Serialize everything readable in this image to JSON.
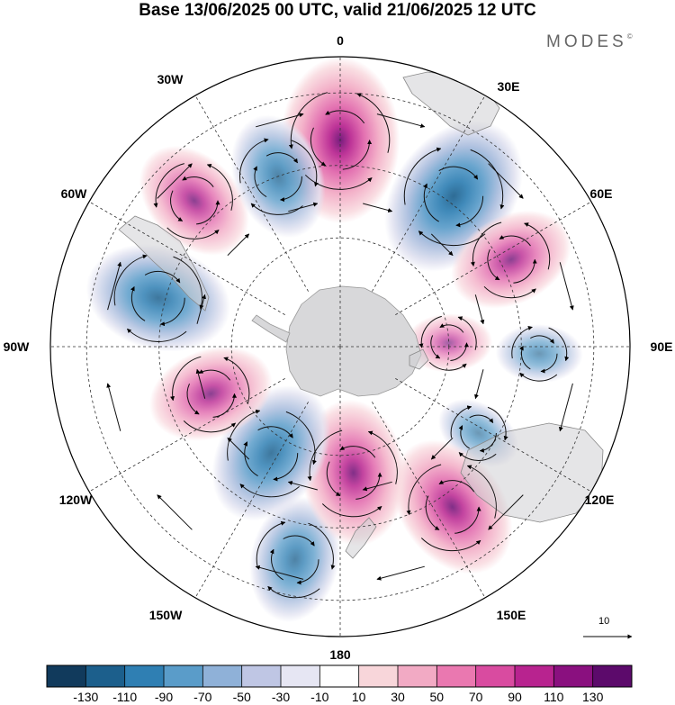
{
  "title": "Base 13/06/2025 00 UTC, valid 21/06/2025 12 UTC",
  "brand": "MODES",
  "brand_mark": "©",
  "projection": "south-polar-stereographic",
  "longitude_labels": [
    {
      "id": "lon-0",
      "text": "0",
      "lon": 0
    },
    {
      "id": "lon-30e",
      "text": "30E",
      "lon": 30
    },
    {
      "id": "lon-60e",
      "text": "60E",
      "lon": 60
    },
    {
      "id": "lon-90e",
      "text": "90E",
      "lon": 90
    },
    {
      "id": "lon-120e",
      "text": "120E",
      "lon": 120
    },
    {
      "id": "lon-150e",
      "text": "150E",
      "lon": 150
    },
    {
      "id": "lon-180",
      "text": "180",
      "lon": 180
    },
    {
      "id": "lon-150w",
      "text": "150W",
      "lon": -150
    },
    {
      "id": "lon-120w",
      "text": "120W",
      "lon": -120
    },
    {
      "id": "lon-90w",
      "text": "90W",
      "lon": -90
    },
    {
      "id": "lon-60w",
      "text": "60W",
      "lon": -60
    },
    {
      "id": "lon-30w",
      "text": "30W",
      "lon": -30
    }
  ],
  "reference_vector": {
    "label": "10"
  },
  "colorbar": {
    "ticks": [
      "-130",
      "-110",
      "-90",
      "-70",
      "-50",
      "-30",
      "-10",
      "10",
      "30",
      "50",
      "70",
      "90",
      "110",
      "130"
    ],
    "colors": [
      "#113a5c",
      "#1c5f8c",
      "#2f7fb3",
      "#5a9cc9",
      "#8fb1d8",
      "#bfc6e4",
      "#e6e6f3",
      "#ffffff",
      "#f8d6da",
      "#f2aac4",
      "#ea78b0",
      "#d94ba0",
      "#b8238f",
      "#8a107f",
      "#5c0a6b"
    ]
  },
  "anomaly_centers": [
    {
      "name": "anomaly-positive-0",
      "value": 110,
      "lon": 0,
      "lat": -33
    },
    {
      "name": "anomaly-negative-30e",
      "value": -110,
      "lon": 37,
      "lat": -38
    },
    {
      "name": "anomaly-positive-60e",
      "value": 70,
      "lon": 63,
      "lat": -37
    },
    {
      "name": "anomaly-negative-90e",
      "value": -30,
      "lon": 92,
      "lat": -35
    },
    {
      "name": "anomaly-negative-115e",
      "value": -30,
      "lon": 122,
      "lat": -45
    },
    {
      "name": "anomaly-positive-140e",
      "value": 90,
      "lon": 145,
      "lat": -36
    },
    {
      "name": "anomaly-negative-170w",
      "value": -70,
      "lon": -168,
      "lat": -30
    },
    {
      "name": "anomaly-positive-175w",
      "value": 90,
      "lon": 174,
      "lat": -55
    },
    {
      "name": "anomaly-negative-145w",
      "value": -90,
      "lon": -147,
      "lat": -55
    },
    {
      "name": "anomaly-positive-105w",
      "value": 70,
      "lon": -110,
      "lat": -52
    },
    {
      "name": "anomaly-negative-75w",
      "value": -90,
      "lon": -75,
      "lat": -38
    },
    {
      "name": "anomaly-positive-45w",
      "value": 70,
      "lon": -45,
      "lat": -33
    },
    {
      "name": "anomaly-negative-20w",
      "value": -70,
      "lon": -20,
      "lat": -40
    },
    {
      "name": "anomaly-positive-90e-weak",
      "value": 30,
      "lon": 88,
      "lat": -60
    }
  ]
}
